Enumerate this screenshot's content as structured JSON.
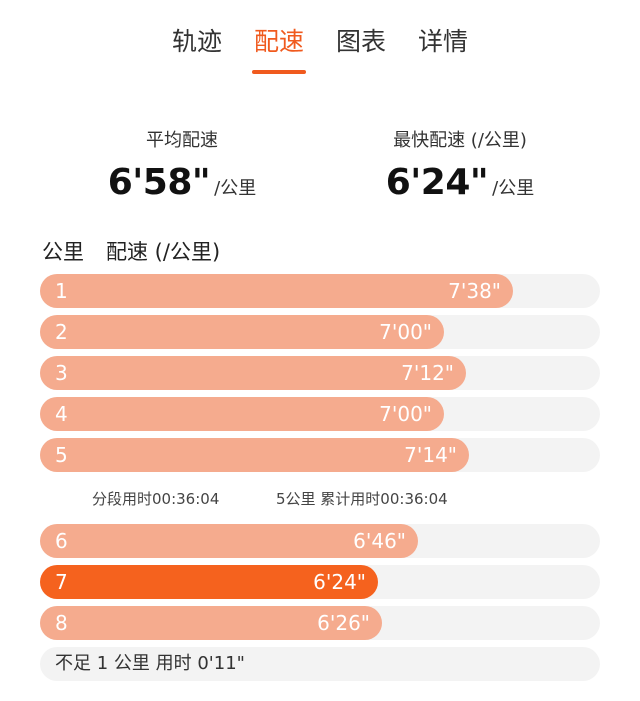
{
  "tabs": [
    {
      "label": "轨迹"
    },
    {
      "label": "配速"
    },
    {
      "label": "图表"
    },
    {
      "label": "详情"
    }
  ],
  "active_tab": "配速",
  "accent_color": "#f05a1e",
  "bar_color": "#f5ab8e",
  "best_bar_color": "#f5621e",
  "summary": {
    "avg_label": "平均配速",
    "avg_value": "6'58\"",
    "avg_unit": "/公里",
    "best_label": "最快配速 (/公里)",
    "best_value": "6'24\"",
    "best_unit": "/公里"
  },
  "list_header": {
    "km": "公里",
    "pace": "配速 (/公里)"
  },
  "splits_a": [
    {
      "km": "1",
      "pace": "7'38\"",
      "seconds": 458
    },
    {
      "km": "2",
      "pace": "7'00\"",
      "seconds": 420
    },
    {
      "km": "3",
      "pace": "7'12\"",
      "seconds": 432
    },
    {
      "km": "4",
      "pace": "7'00\"",
      "seconds": 420
    },
    {
      "km": "5",
      "pace": "7'14\"",
      "seconds": 434
    }
  ],
  "split_summary": {
    "segment": "分段用时00:36:04",
    "cumulative": "5公里  累计用时00:36:04"
  },
  "splits_b": [
    {
      "km": "6",
      "pace": "6'46\"",
      "seconds": 406
    },
    {
      "km": "7",
      "pace": "6'24\"",
      "seconds": 384,
      "best": true
    },
    {
      "km": "8",
      "pace": "6'26\"",
      "seconds": 386
    }
  ],
  "remainder": "不足 1 公里 用时 0'11\""
}
